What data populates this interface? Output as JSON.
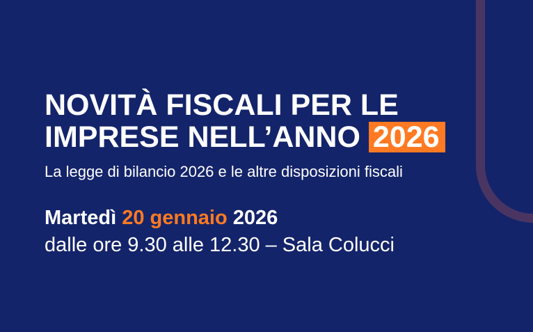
{
  "title": {
    "line1": "NOVITÀ FISCALI PER LE",
    "line2": "IMPRESE NELL’ANNO",
    "highlight": "2026"
  },
  "subtitle": "La legge di bilancio 2026 e le altre disposizioni fiscali",
  "date": {
    "weekday": "Martedì",
    "day_month": "20 gennaio",
    "year": "2026"
  },
  "time_place": "dalle ore 9.30 alle 12.30 – Sala Colucci",
  "colors": {
    "background": "#14246a",
    "accent": "#ff7a22",
    "arc": "#4a3562"
  }
}
